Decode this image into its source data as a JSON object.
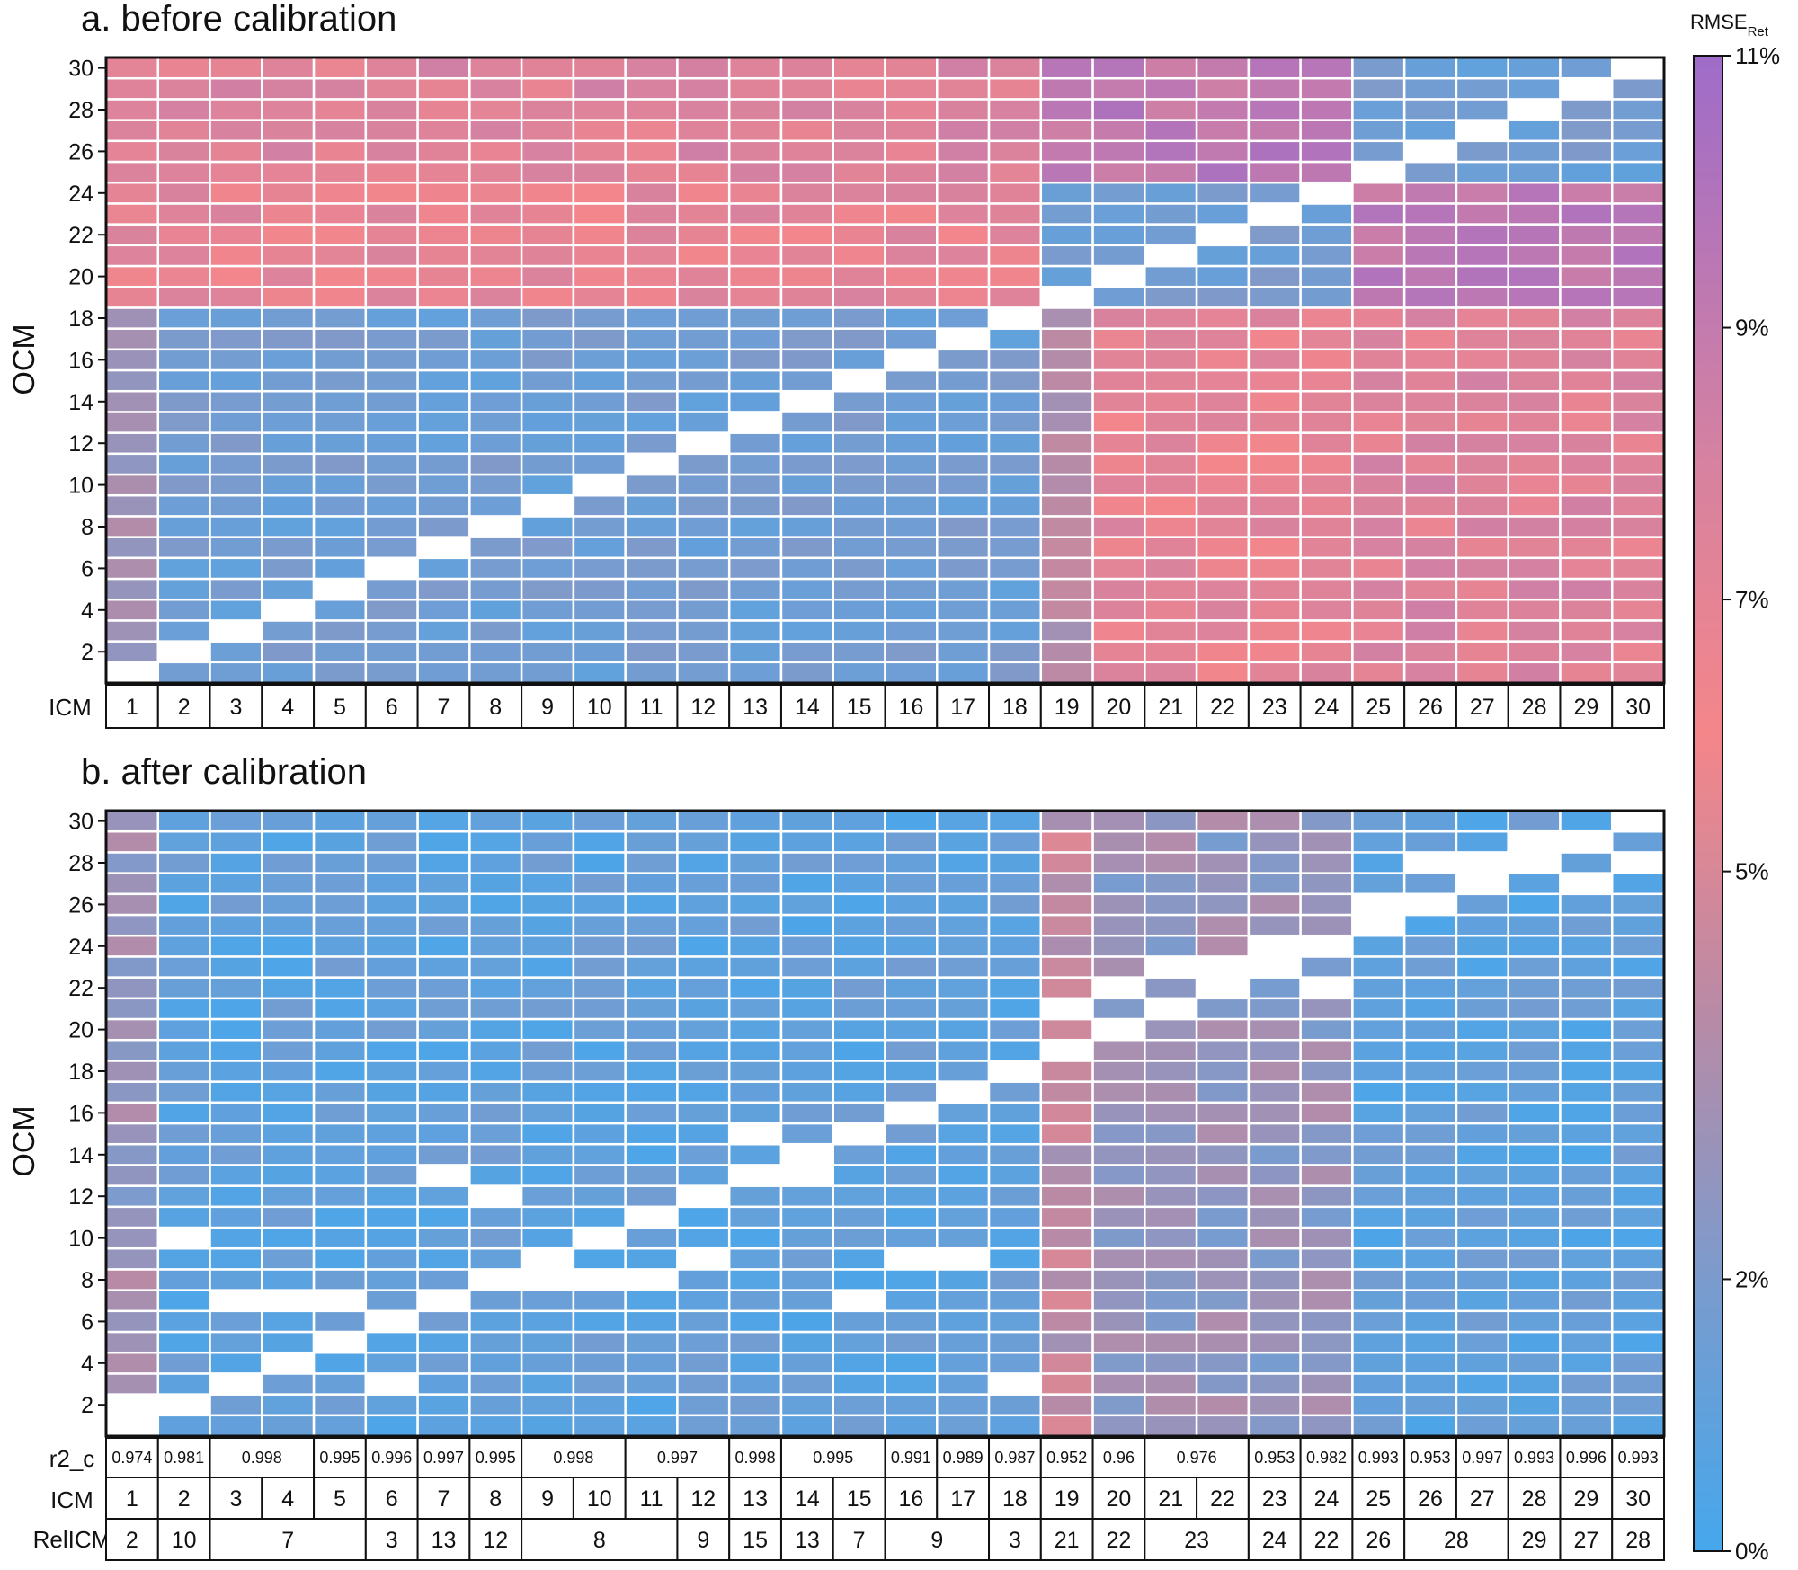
{
  "chart_data": [
    {
      "type": "heatmap",
      "title": "a. before calibration",
      "ylabel": "OCM",
      "xlabel": "ICM",
      "x": [
        1,
        2,
        3,
        4,
        5,
        6,
        7,
        8,
        9,
        10,
        11,
        12,
        13,
        14,
        15,
        16,
        17,
        18,
        19,
        20,
        21,
        22,
        23,
        24,
        25,
        26,
        27,
        28,
        29,
        30
      ],
      "y": [
        1,
        2,
        3,
        4,
        5,
        6,
        7,
        8,
        9,
        10,
        11,
        12,
        13,
        14,
        15,
        16,
        17,
        18,
        19,
        20,
        21,
        22,
        23,
        24,
        25,
        26,
        27,
        28,
        29,
        30
      ],
      "yticks": [
        2,
        4,
        6,
        8,
        10,
        12,
        14,
        16,
        18,
        20,
        22,
        24,
        26,
        28,
        30
      ],
      "diagonal": "blank (ICM = OCM)",
      "groups": [
        [
          1,
          18
        ],
        [
          19,
          24
        ],
        [
          25,
          30
        ]
      ],
      "approx_rmse_percent": {
        "within_group": 1.6,
        "between_groups_1_18_and_19_24": 7.0,
        "between_groups_1_18_and_25_30": 7.5,
        "between_groups_19_24_and_25_30": 9.3,
        "icm_1_column": 3.2,
        "icm_19_column": 3.8
      }
    },
    {
      "type": "heatmap",
      "title": "b. after calibration",
      "ylabel": "OCM",
      "xlabel": "ICM",
      "x": [
        1,
        2,
        3,
        4,
        5,
        6,
        7,
        8,
        9,
        10,
        11,
        12,
        13,
        14,
        15,
        16,
        17,
        18,
        19,
        20,
        21,
        22,
        23,
        24,
        25,
        26,
        27,
        28,
        29,
        30
      ],
      "y": [
        1,
        2,
        3,
        4,
        5,
        6,
        7,
        8,
        9,
        10,
        11,
        12,
        13,
        14,
        15,
        16,
        17,
        18,
        19,
        20,
        21,
        22,
        23,
        24,
        25,
        26,
        27,
        28,
        29,
        30
      ],
      "yticks": [
        2,
        4,
        6,
        8,
        10,
        12,
        14,
        16,
        18,
        20,
        22,
        24,
        26,
        28,
        30
      ],
      "diagonal": "blank where OCM equals ICM or its RelICM",
      "approx_rmse_percent": {
        "typical": 1.0,
        "icm_1_column": 3.0,
        "icm_19_column": 4.2,
        "icm_20_24_columns": 2.8
      },
      "table": {
        "r2_c": {
          "label": "r2_c",
          "cells": [
            {
              "span": 1,
              "text": "0.974"
            },
            {
              "span": 1,
              "text": "0.981"
            },
            {
              "span": 2,
              "text": "0.998"
            },
            {
              "span": 1,
              "text": "0.995"
            },
            {
              "span": 1,
              "text": "0.996"
            },
            {
              "span": 1,
              "text": "0.997"
            },
            {
              "span": 1,
              "text": "0.995"
            },
            {
              "span": 2,
              "text": "0.998"
            },
            {
              "span": 2,
              "text": "0.997"
            },
            {
              "span": 1,
              "text": "0.998"
            },
            {
              "span": 2,
              "text": "0.995"
            },
            {
              "span": 1,
              "text": "0.991"
            },
            {
              "span": 1,
              "text": "0.989"
            },
            {
              "span": 1,
              "text": "0.987"
            },
            {
              "span": 1,
              "text": "0.952"
            },
            {
              "span": 1,
              "text": "0.96"
            },
            {
              "span": 2,
              "text": "0.976"
            },
            {
              "span": 1,
              "text": "0.953"
            },
            {
              "span": 1,
              "text": "0.982"
            },
            {
              "span": 1,
              "text": "0.993"
            },
            {
              "span": 1,
              "text": "0.953"
            },
            {
              "span": 1,
              "text": "0.997"
            },
            {
              "span": 1,
              "text": "0.993"
            },
            {
              "span": 1,
              "text": "0.996"
            },
            {
              "span": 1,
              "text": "0.993"
            }
          ]
        },
        "icm": {
          "label": "ICM",
          "cells": [
            "1",
            "2",
            "3",
            "4",
            "5",
            "6",
            "7",
            "8",
            "9",
            "10",
            "11",
            "12",
            "13",
            "14",
            "15",
            "16",
            "17",
            "18",
            "19",
            "20",
            "21",
            "22",
            "23",
            "24",
            "25",
            "26",
            "27",
            "28",
            "29",
            "30"
          ]
        },
        "relicm": {
          "label": "RelICM",
          "cells": [
            {
              "span": 1,
              "text": "2"
            },
            {
              "span": 1,
              "text": "10"
            },
            {
              "span": 3,
              "text": "7"
            },
            {
              "span": 1,
              "text": "3"
            },
            {
              "span": 1,
              "text": "13"
            },
            {
              "span": 1,
              "text": "12"
            },
            {
              "span": 3,
              "text": "8"
            },
            {
              "span": 1,
              "text": "9"
            },
            {
              "span": 1,
              "text": "15"
            },
            {
              "span": 1,
              "text": "13"
            },
            {
              "span": 1,
              "text": "7"
            },
            {
              "span": 2,
              "text": "9"
            },
            {
              "span": 1,
              "text": "3"
            },
            {
              "span": 1,
              "text": "21"
            },
            {
              "span": 1,
              "text": "22"
            },
            {
              "span": 2,
              "text": "23"
            },
            {
              "span": 1,
              "text": "24"
            },
            {
              "span": 1,
              "text": "22"
            },
            {
              "span": 1,
              "text": "26"
            },
            {
              "span": 2,
              "text": "28"
            },
            {
              "span": 1,
              "text": "29"
            },
            {
              "span": 1,
              "text": "27"
            },
            {
              "span": 1,
              "text": "28"
            }
          ]
        }
      }
    }
  ],
  "colorbar": {
    "title": "RMSE",
    "title_subscript": "Ret",
    "range": [
      0,
      11
    ],
    "ticks": [
      {
        "value": 0,
        "label": "0%"
      },
      {
        "value": 2,
        "label": "2%"
      },
      {
        "value": 5,
        "label": "5%"
      },
      {
        "value": 7,
        "label": "7%"
      },
      {
        "value": 9,
        "label": "9%"
      },
      {
        "value": 11,
        "label": "11%"
      }
    ],
    "colors": [
      {
        "value": 0,
        "hex": "#45a7ec"
      },
      {
        "value": 2,
        "hex": "#7b9bcd"
      },
      {
        "value": 4,
        "hex": "#ba8aa5"
      },
      {
        "value": 6,
        "hex": "#f4868a"
      },
      {
        "value": 8,
        "hex": "#d682a0"
      },
      {
        "value": 11,
        "hex": "#9e6cc9"
      }
    ]
  }
}
